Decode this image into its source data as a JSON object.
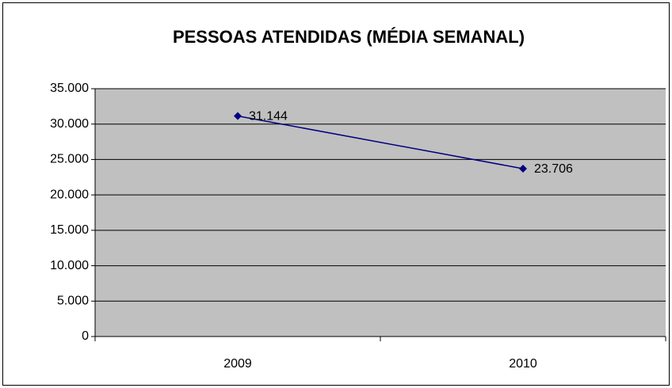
{
  "chart_data": {
    "type": "line",
    "title": "PESSOAS ATENDIDAS (MÉDIA SEMANAL)",
    "categories": [
      "2009",
      "2010"
    ],
    "values": [
      31144,
      23706
    ],
    "value_labels": [
      "31.144",
      "23.706"
    ],
    "color": "#000080",
    "ylim": [
      0,
      35000
    ],
    "yticks": [
      0,
      {
        "value": 5000,
        "label": "5.000"
      },
      {
        "value": 10000,
        "label": "10.000"
      },
      {
        "value": 15000,
        "label": "15.000"
      },
      {
        "value": 20000,
        "label": "20.000"
      },
      {
        "value": 25000,
        "label": "25.000"
      },
      {
        "value": 30000,
        "label": "30.000"
      },
      {
        "value": 35000,
        "label": "35.000"
      }
    ],
    "grid": true
  }
}
